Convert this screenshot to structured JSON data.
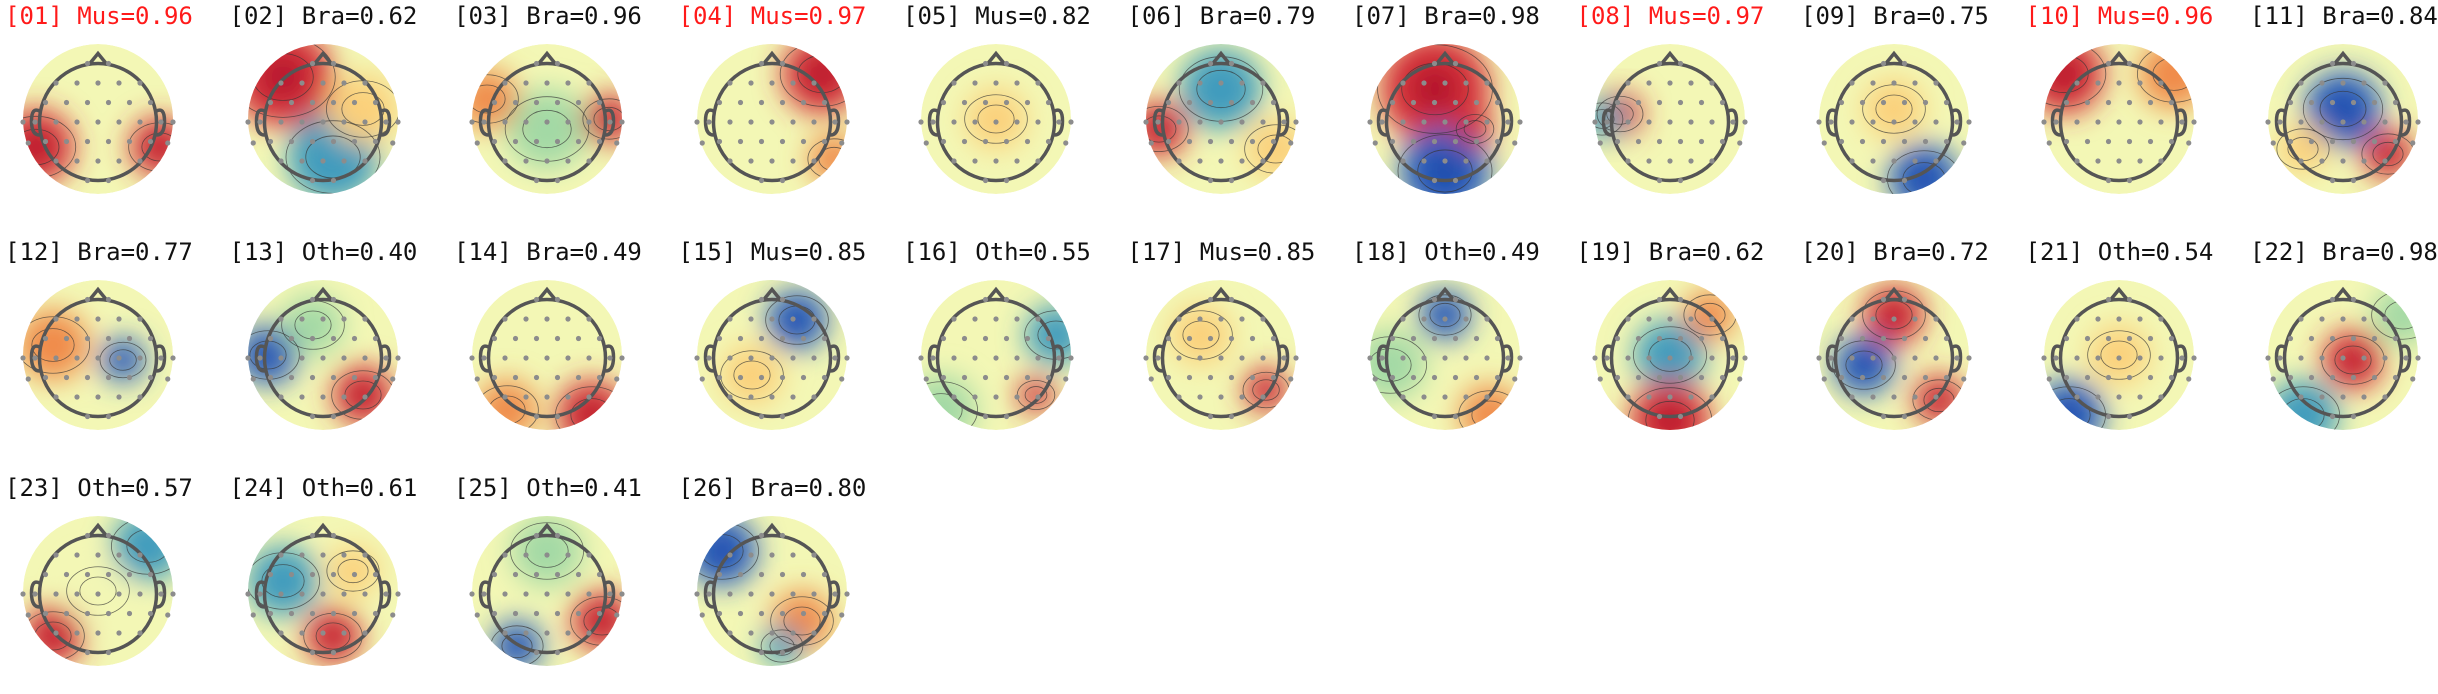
{
  "figure": {
    "flag_color": "#ff1a1a",
    "text_color": "#111111",
    "colormap": [
      "#2c5fbf",
      "#3f9bbd",
      "#a3d9a5",
      "#f3f7b5",
      "#fbd07a",
      "#f08a4a",
      "#d7303b"
    ],
    "electrode_color": "#8c8c8c",
    "head_outline_color": "#555555"
  },
  "components": [
    {
      "index": "[01]",
      "label": "Mus",
      "prob": "0.96",
      "title": "[01] Mus=0.96",
      "flagged": true
    },
    {
      "index": "[02]",
      "label": "Bra",
      "prob": "0.62",
      "title": "[02] Bra=0.62",
      "flagged": false
    },
    {
      "index": "[03]",
      "label": "Bra",
      "prob": "0.96",
      "title": "[03] Bra=0.96",
      "flagged": false
    },
    {
      "index": "[04]",
      "label": "Mus",
      "prob": "0.97",
      "title": "[04] Mus=0.97",
      "flagged": true
    },
    {
      "index": "[05]",
      "label": "Mus",
      "prob": "0.82",
      "title": "[05] Mus=0.82",
      "flagged": false
    },
    {
      "index": "[06]",
      "label": "Bra",
      "prob": "0.79",
      "title": "[06] Bra=0.79",
      "flagged": false
    },
    {
      "index": "[07]",
      "label": "Bra",
      "prob": "0.98",
      "title": "[07] Bra=0.98",
      "flagged": false
    },
    {
      "index": "[08]",
      "label": "Mus",
      "prob": "0.97",
      "title": "[08] Mus=0.97",
      "flagged": true
    },
    {
      "index": "[09]",
      "label": "Bra",
      "prob": "0.75",
      "title": "[09] Bra=0.75",
      "flagged": false
    },
    {
      "index": "[10]",
      "label": "Mus",
      "prob": "0.96",
      "title": "[10] Mus=0.96",
      "flagged": true
    },
    {
      "index": "[11]",
      "label": "Bra",
      "prob": "0.84",
      "title": "[11] Bra=0.84",
      "flagged": false
    },
    {
      "index": "[12]",
      "label": "Bra",
      "prob": "0.77",
      "title": "[12] Bra=0.77",
      "flagged": false
    },
    {
      "index": "[13]",
      "label": "Oth",
      "prob": "0.40",
      "title": "[13] Oth=0.40",
      "flagged": false
    },
    {
      "index": "[14]",
      "label": "Bra",
      "prob": "0.49",
      "title": "[14] Bra=0.49",
      "flagged": false
    },
    {
      "index": "[15]",
      "label": "Mus",
      "prob": "0.85",
      "title": "[15] Mus=0.85",
      "flagged": false
    },
    {
      "index": "[16]",
      "label": "Oth",
      "prob": "0.55",
      "title": "[16] Oth=0.55",
      "flagged": false
    },
    {
      "index": "[17]",
      "label": "Mus",
      "prob": "0.85",
      "title": "[17] Mus=0.85",
      "flagged": false
    },
    {
      "index": "[18]",
      "label": "Oth",
      "prob": "0.49",
      "title": "[18] Oth=0.49",
      "flagged": false
    },
    {
      "index": "[19]",
      "label": "Bra",
      "prob": "0.62",
      "title": "[19] Bra=0.62",
      "flagged": false
    },
    {
      "index": "[20]",
      "label": "Bra",
      "prob": "0.72",
      "title": "[20] Bra=0.72",
      "flagged": false
    },
    {
      "index": "[21]",
      "label": "Oth",
      "prob": "0.54",
      "title": "[21] Oth=0.54",
      "flagged": false
    },
    {
      "index": "[22]",
      "label": "Bra",
      "prob": "0.98",
      "title": "[22] Bra=0.98",
      "flagged": false
    },
    {
      "index": "[23]",
      "label": "Oth",
      "prob": "0.57",
      "title": "[23] Oth=0.57",
      "flagged": false
    },
    {
      "index": "[24]",
      "label": "Oth",
      "prob": "0.61",
      "title": "[24] Oth=0.61",
      "flagged": false
    },
    {
      "index": "[25]",
      "label": "Oth",
      "prob": "0.41",
      "title": "[25] Oth=0.41",
      "flagged": false
    },
    {
      "index": "[26]",
      "label": "Bra",
      "prob": "0.80",
      "title": "[26] Bra=0.80",
      "flagged": false
    }
  ]
}
